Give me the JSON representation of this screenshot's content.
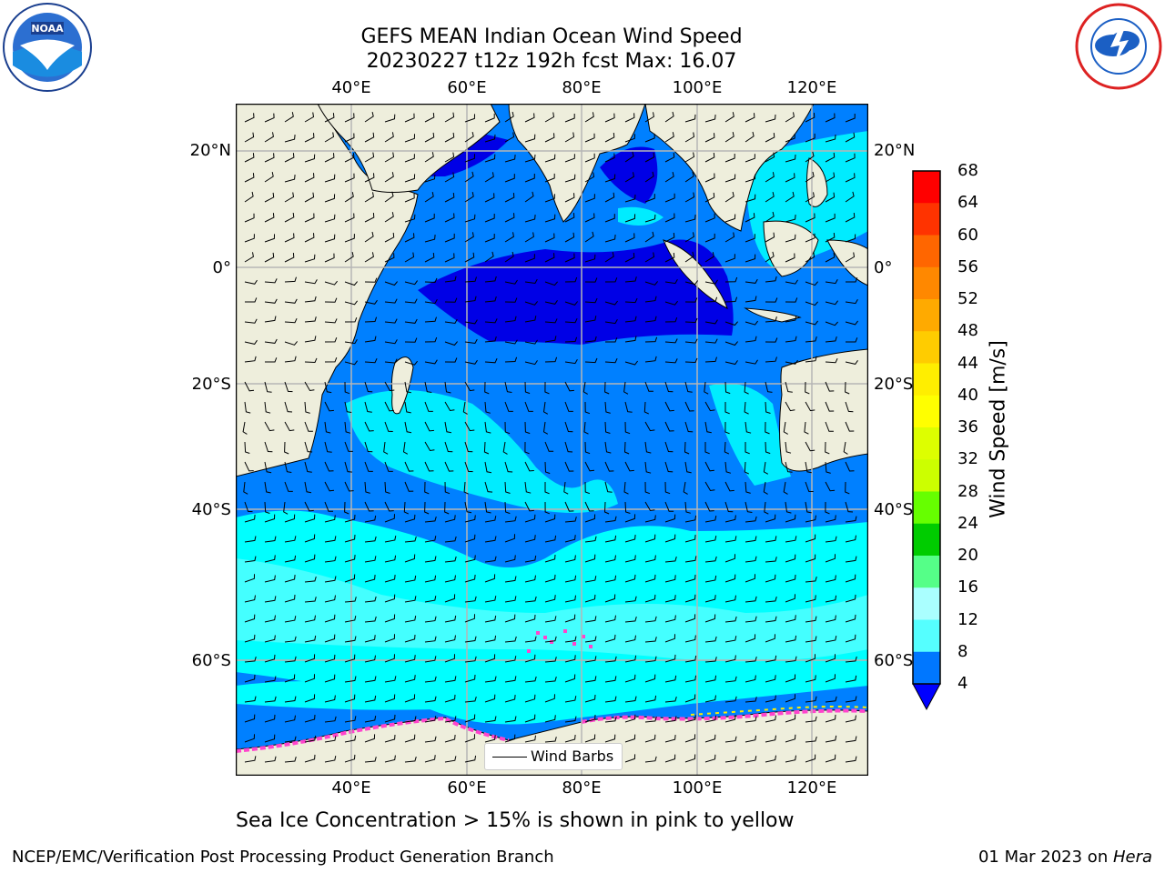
{
  "title": {
    "line1": "GEFS MEAN Indian Ocean Wind Speed",
    "line2": "20230227 t12z 192h fcst   Max: 16.07"
  },
  "axes": {
    "lon_ticks": [
      "40°E",
      "60°E",
      "80°E",
      "100°E",
      "120°E"
    ],
    "lat_ticks_left": [
      "20°N",
      "0°",
      "20°S",
      "40°S",
      "60°S"
    ],
    "lat_ticks_right": [
      "20°N",
      "0°",
      "20°S",
      "40°S",
      "60°S"
    ]
  },
  "colorbar": {
    "title": "Wind Speed [m/s]",
    "ticks": [
      "68",
      "64",
      "60",
      "56",
      "52",
      "48",
      "44",
      "40",
      "36",
      "32",
      "28",
      "24",
      "20",
      "16",
      "12",
      "8",
      "4"
    ],
    "colors": [
      "#ff0000",
      "#ff3300",
      "#ff6600",
      "#ff8800",
      "#ffaa00",
      "#ffcc00",
      "#ffee00",
      "#ffff00",
      "#eeff00",
      "#ccff00",
      "#66ff00",
      "#00cc00",
      "#00ee00",
      "#55ff88",
      "#aaffff",
      "#55ffff",
      "#00ffff",
      "#0077ff",
      "#0000ff"
    ]
  },
  "legend": {
    "label": "Wind Barbs"
  },
  "note": "Sea Ice Concentration > 15% is shown in pink to yellow",
  "credit": {
    "left": "NCEP/EMC/Verification Post Processing Product Generation Branch",
    "date": "01 Mar 2023 on ",
    "machine": "Hera"
  },
  "colors": {
    "land": "#eeeedc",
    "ocean_light": "#0080ff",
    "ocean_dark": "#0000e6",
    "ocean_mid": "#0055ff",
    "cyan": "#00ffff",
    "light_cyan": "#66ffff",
    "ice": "#ff44cc"
  }
}
